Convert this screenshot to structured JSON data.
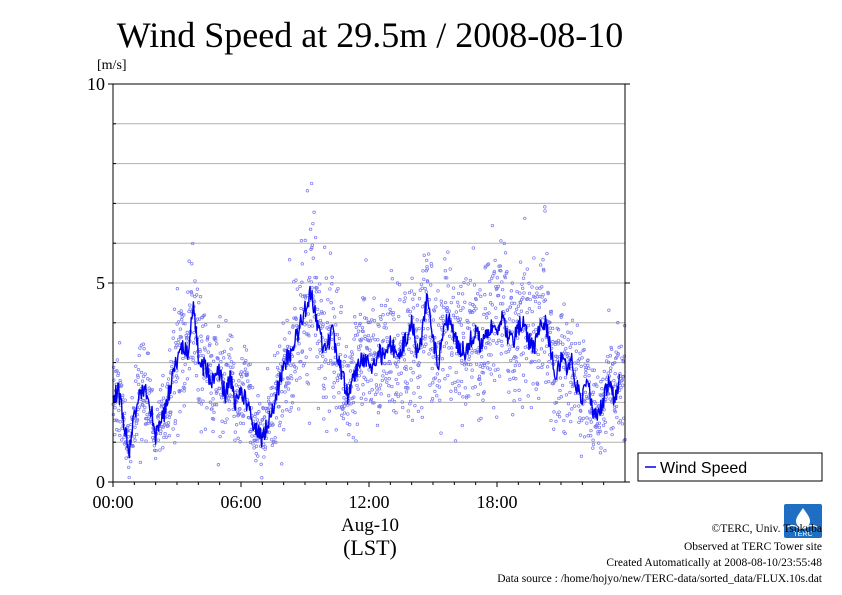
{
  "chart_data": {
    "type": "line",
    "title": "Wind Speed at 29.5m / 2008-08-10",
    "ylabel": "[m/s]",
    "xlabel": "Aug-10",
    "xlabel2": "(LST)",
    "ylim": [
      0,
      10
    ],
    "xlim_hours": [
      0,
      24
    ],
    "yticks": [
      0,
      5,
      10
    ],
    "xticks": [
      "00:00",
      "06:00",
      "12:00",
      "18:00"
    ],
    "xtick_hours": [
      0,
      6,
      12,
      18
    ],
    "grid": true,
    "legend_position": "bottom-right outside",
    "series": [
      {
        "name": "Wind Speed",
        "color": "#0000ee",
        "scatter_color": "#7777ee",
        "hours": [
          0.0,
          0.25,
          0.5,
          0.75,
          1.0,
          1.25,
          1.5,
          1.75,
          2.0,
          2.25,
          2.5,
          2.75,
          3.0,
          3.25,
          3.5,
          3.75,
          4.0,
          4.25,
          4.5,
          4.75,
          5.0,
          5.25,
          5.5,
          5.75,
          6.0,
          6.25,
          6.5,
          6.75,
          7.0,
          7.25,
          7.5,
          7.75,
          8.0,
          8.25,
          8.5,
          8.75,
          9.0,
          9.25,
          9.5,
          9.75,
          10.0,
          10.25,
          10.5,
          10.75,
          11.0,
          11.25,
          11.5,
          11.75,
          12.0,
          12.25,
          12.5,
          12.75,
          13.0,
          13.25,
          13.5,
          13.75,
          14.0,
          14.25,
          14.5,
          14.75,
          15.0,
          15.25,
          15.5,
          15.75,
          16.0,
          16.25,
          16.5,
          16.75,
          17.0,
          17.25,
          17.5,
          17.75,
          18.0,
          18.25,
          18.5,
          18.75,
          19.0,
          19.25,
          19.5,
          19.75,
          20.0,
          20.25,
          20.5,
          20.75,
          21.0,
          21.25,
          21.5,
          21.75,
          22.0,
          22.25,
          22.5,
          22.75,
          23.0,
          23.25,
          23.5,
          23.75
        ],
        "values": [
          2.1,
          2.3,
          1.5,
          0.8,
          1.6,
          2.2,
          2.4,
          1.9,
          1.2,
          1.5,
          1.9,
          2.6,
          3.0,
          3.5,
          3.3,
          4.4,
          3.2,
          2.9,
          2.7,
          2.5,
          2.8,
          2.2,
          2.6,
          1.9,
          2.3,
          2.0,
          1.6,
          1.3,
          1.1,
          1.5,
          1.9,
          2.4,
          2.9,
          3.2,
          3.5,
          3.9,
          4.3,
          4.8,
          4.1,
          3.6,
          3.2,
          3.9,
          3.1,
          2.7,
          2.2,
          2.6,
          2.9,
          3.1,
          3.0,
          2.9,
          3.3,
          3.0,
          3.5,
          3.2,
          3.3,
          3.6,
          4.0,
          3.3,
          3.7,
          4.8,
          3.5,
          3.0,
          3.8,
          4.1,
          3.6,
          3.4,
          3.3,
          3.6,
          3.8,
          3.4,
          3.7,
          3.9,
          3.8,
          4.2,
          3.6,
          3.5,
          3.9,
          4.1,
          3.5,
          3.3,
          3.9,
          4.0,
          3.4,
          2.7,
          3.1,
          2.8,
          3.0,
          2.4,
          2.1,
          2.5,
          1.8,
          1.6,
          2.1,
          2.6,
          2.0,
          2.5
        ]
      }
    ]
  },
  "credits": {
    "copyright": "©TERC, Univ. Tsukuba",
    "site": "Observed at TERC Tower site",
    "created": "Created Automatically at 2008-08-10/23:55:48",
    "source": "Data source : /home/hojyo/new/TERC-data/sorted_data/FLUX.10s.dat"
  },
  "logo": {
    "text": "TERC",
    "color": "#1e6fc4"
  }
}
